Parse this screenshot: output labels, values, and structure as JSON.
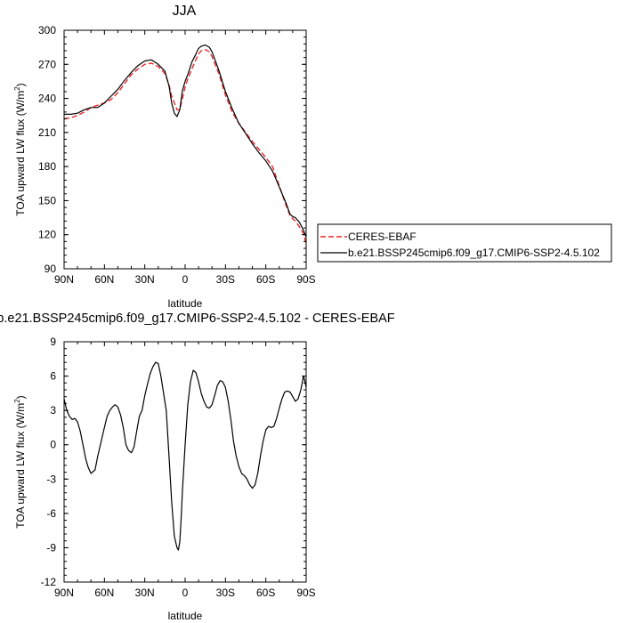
{
  "chart_data": [
    {
      "type": "line",
      "title": "JJA",
      "xlabel": "latitude",
      "ylabel": "TOA upward LW flux (W/m²)",
      "ylabel_parts": {
        "main": "TOA upward LW flux (W/m",
        "sup": "2",
        "end": ")"
      },
      "xlim": [
        -90,
        90
      ],
      "ylim": [
        90,
        300
      ],
      "xticks": [
        -90,
        -60,
        -30,
        0,
        30,
        60,
        90
      ],
      "xtick_labels": [
        "90N",
        "60N",
        "30N",
        "0",
        "30S",
        "60S",
        "90S"
      ],
      "yticks": [
        90,
        120,
        150,
        180,
        210,
        240,
        270,
        300
      ],
      "ytick_labels": [
        "90",
        "120",
        "150",
        "180",
        "210",
        "240",
        "270",
        "300"
      ],
      "legend_placement": "right",
      "series": [
        {
          "name": "CERES-EBAF",
          "color": "#e8262a",
          "dash": true,
          "x": [
            -90,
            -85,
            -80,
            -75,
            -70,
            -65,
            -60,
            -55,
            -50,
            -45,
            -40,
            -35,
            -30,
            -25,
            -20,
            -15,
            -12,
            -10,
            -8,
            -6,
            -4,
            -2,
            0,
            2,
            5,
            8,
            10,
            12,
            15,
            18,
            20,
            25,
            30,
            35,
            40,
            45,
            50,
            55,
            60,
            65,
            70,
            75,
            78,
            80,
            82,
            85,
            88,
            90
          ],
          "y": [
            222,
            223,
            225,
            228,
            232,
            234,
            236,
            239,
            245,
            253,
            261,
            266,
            270,
            271,
            268,
            262,
            252,
            242,
            236,
            230,
            230,
            240,
            250,
            257,
            266,
            274,
            279,
            282,
            283,
            281,
            277,
            262,
            243,
            228,
            218,
            210,
            202,
            195,
            188,
            180,
            163,
            146,
            137,
            134,
            132,
            127,
            121,
            112
          ]
        },
        {
          "name": "b.e21.BSSP245cmip6.f09_g17.CMIP6-SSP2-4.5.102",
          "color": "#000000",
          "dash": false,
          "x": [
            -90,
            -85,
            -80,
            -75,
            -70,
            -65,
            -60,
            -55,
            -50,
            -45,
            -40,
            -35,
            -30,
            -25,
            -20,
            -15,
            -12,
            -10,
            -8,
            -6,
            -4,
            -2,
            0,
            2,
            5,
            8,
            10,
            12,
            15,
            18,
            20,
            25,
            30,
            35,
            40,
            45,
            50,
            55,
            60,
            65,
            70,
            75,
            78,
            80,
            82,
            85,
            88,
            90
          ],
          "y": [
            226,
            226,
            227,
            230,
            232,
            232,
            236,
            242,
            248,
            256,
            263,
            269,
            273,
            274,
            270,
            264,
            251,
            236,
            227,
            224,
            230,
            247,
            255,
            261,
            272,
            279,
            284,
            286,
            287,
            285,
            281,
            265,
            246,
            231,
            218,
            209,
            200,
            192,
            185,
            176,
            162,
            148,
            138,
            136,
            135,
            131,
            124,
            118
          ]
        }
      ]
    },
    {
      "type": "line",
      "title": "b.e21.BSSP245cmip6.f09_g17.CMIP6-SSP2-4.5.102 - CERES-EBAF",
      "xlabel": "latitude",
      "ylabel": "TOA upward LW flux (W/m²)",
      "ylabel_parts": {
        "main": "TOA upward LW flux (W/m",
        "sup": "2",
        "end": ")"
      },
      "xlim": [
        -90,
        90
      ],
      "ylim": [
        -12,
        9
      ],
      "xticks": [
        -90,
        -60,
        -30,
        0,
        30,
        60,
        90
      ],
      "xtick_labels": [
        "90N",
        "60N",
        "30N",
        "0",
        "30S",
        "60S",
        "90S"
      ],
      "yticks": [
        -12,
        -9,
        -6,
        -3,
        0,
        3,
        6,
        9
      ],
      "ytick_labels": [
        "-12",
        "-9",
        "-6",
        "-3",
        "0",
        "3",
        "6",
        "9"
      ],
      "series": [
        {
          "color": "#000000",
          "x": [
            -90,
            -88,
            -86,
            -84,
            -82,
            -80,
            -78,
            -76,
            -74,
            -72,
            -70,
            -67,
            -65,
            -63,
            -60,
            -58,
            -56,
            -54,
            -52,
            -50,
            -48,
            -46,
            -44,
            -42,
            -40,
            -38,
            -36,
            -34,
            -32,
            -30,
            -28,
            -26,
            -24,
            -22,
            -20,
            -18,
            -16,
            -14,
            -12,
            -10,
            -8,
            -6,
            -5,
            -4,
            -3,
            -2,
            0,
            2,
            4,
            6,
            8,
            10,
            12,
            14,
            16,
            18,
            20,
            22,
            24,
            26,
            28,
            30,
            32,
            34,
            36,
            38,
            40,
            42,
            44,
            46,
            48,
            50,
            52,
            54,
            56,
            58,
            60,
            62,
            64,
            66,
            68,
            70,
            72,
            74,
            76,
            78,
            80,
            82,
            84,
            86,
            88,
            89,
            90
          ],
          "y": [
            4.0,
            3.0,
            2.5,
            2.2,
            2.3,
            2.0,
            1.2,
            0.0,
            -1.2,
            -2.0,
            -2.5,
            -2.2,
            -1.0,
            0.0,
            1.5,
            2.5,
            3.0,
            3.3,
            3.5,
            3.3,
            2.6,
            1.5,
            0.0,
            -0.5,
            -0.7,
            -0.2,
            1.2,
            2.5,
            3.0,
            4.3,
            5.3,
            6.2,
            6.8,
            7.2,
            7.1,
            6.0,
            4.5,
            3.0,
            -1.0,
            -5.0,
            -8.0,
            -9.0,
            -9.2,
            -8.5,
            -6.5,
            -4.0,
            0.0,
            3.5,
            5.5,
            6.5,
            6.3,
            5.5,
            4.5,
            3.8,
            3.3,
            3.2,
            3.5,
            4.3,
            5.2,
            5.6,
            5.5,
            5.0,
            3.8,
            2.2,
            0.3,
            -1.0,
            -1.9,
            -2.5,
            -2.7,
            -3.0,
            -3.5,
            -3.8,
            -3.5,
            -2.5,
            -1.0,
            0.3,
            1.3,
            1.6,
            1.5,
            1.6,
            2.3,
            3.2,
            4.0,
            4.6,
            4.7,
            4.6,
            4.2,
            3.8,
            4.0,
            4.8,
            6.0,
            5.6,
            5.0
          ]
        }
      ]
    }
  ],
  "legend": {
    "items": [
      {
        "label": "CERES-EBAF",
        "color": "#e8262a",
        "dash": true
      },
      {
        "label": "b.e21.BSSP245cmip6.f09_g17.CMIP6-SSP2-4.5.102",
        "color": "#000000",
        "dash": false
      }
    ]
  }
}
